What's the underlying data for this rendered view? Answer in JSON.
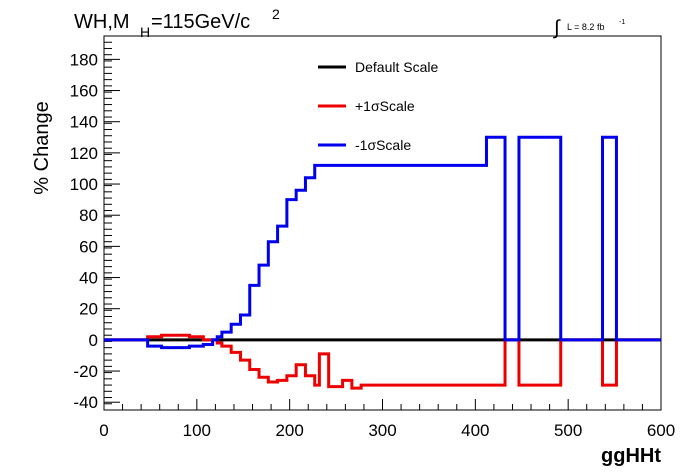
{
  "chart_data": {
    "type": "line",
    "title_main": "WH,M",
    "title_sub": "H",
    "title_rest": "=115GeV/c",
    "title_sup": "2",
    "lumi_integral": "∫",
    "lumi_text": "L = 8.2 fb",
    "lumi_sup": "-1",
    "xlabel": "ggHHt",
    "ylabel": "% Change",
    "xlim": [
      0,
      600
    ],
    "ylim": [
      -45,
      195
    ],
    "xticks": [
      0,
      100,
      200,
      300,
      400,
      500,
      600
    ],
    "yticks": [
      -40,
      -20,
      0,
      20,
      40,
      60,
      80,
      100,
      120,
      140,
      160,
      180
    ],
    "legend_position": "top-center",
    "series": [
      {
        "name": "Default Scale",
        "color": "#000000",
        "steps": [
          [
            0,
            0
          ],
          [
            600,
            0
          ]
        ]
      },
      {
        "name": "+1σScale",
        "color": "#ee0000",
        "steps": [
          [
            0,
            0
          ],
          [
            37,
            0
          ],
          [
            47,
            2
          ],
          [
            62,
            3
          ],
          [
            92,
            2
          ],
          [
            107,
            0
          ],
          [
            122,
            -2
          ],
          [
            127,
            -4
          ],
          [
            137,
            -8
          ],
          [
            147,
            -13
          ],
          [
            157,
            -19
          ],
          [
            167,
            -24
          ],
          [
            177,
            -27
          ],
          [
            187,
            -26
          ],
          [
            197,
            -23
          ],
          [
            207,
            -16
          ],
          [
            217,
            -23
          ],
          [
            227,
            -29
          ],
          [
            232,
            -9
          ],
          [
            242,
            -30
          ],
          [
            252,
            -30
          ],
          [
            257,
            -26
          ],
          [
            267,
            -31
          ],
          [
            277,
            -29
          ],
          [
            287,
            -29
          ],
          [
            432,
            0
          ],
          [
            447,
            -29
          ],
          [
            492,
            0
          ],
          [
            537,
            -29
          ],
          [
            552,
            0
          ],
          [
            600,
            0
          ]
        ]
      },
      {
        "name": "-1σScale",
        "color": "#0000ee",
        "steps": [
          [
            0,
            0
          ],
          [
            37,
            0
          ],
          [
            47,
            -4
          ],
          [
            62,
            -5
          ],
          [
            92,
            -4
          ],
          [
            107,
            -3
          ],
          [
            117,
            0
          ],
          [
            122,
            2
          ],
          [
            127,
            5
          ],
          [
            137,
            10
          ],
          [
            147,
            16
          ],
          [
            157,
            35
          ],
          [
            167,
            48
          ],
          [
            177,
            63
          ],
          [
            187,
            73
          ],
          [
            197,
            90
          ],
          [
            207,
            96
          ],
          [
            217,
            104
          ],
          [
            227,
            112
          ],
          [
            232,
            112
          ],
          [
            412,
            130
          ],
          [
            432,
            0
          ],
          [
            447,
            130
          ],
          [
            492,
            0
          ],
          [
            537,
            130
          ],
          [
            552,
            0
          ],
          [
            600,
            0
          ]
        ]
      }
    ]
  }
}
